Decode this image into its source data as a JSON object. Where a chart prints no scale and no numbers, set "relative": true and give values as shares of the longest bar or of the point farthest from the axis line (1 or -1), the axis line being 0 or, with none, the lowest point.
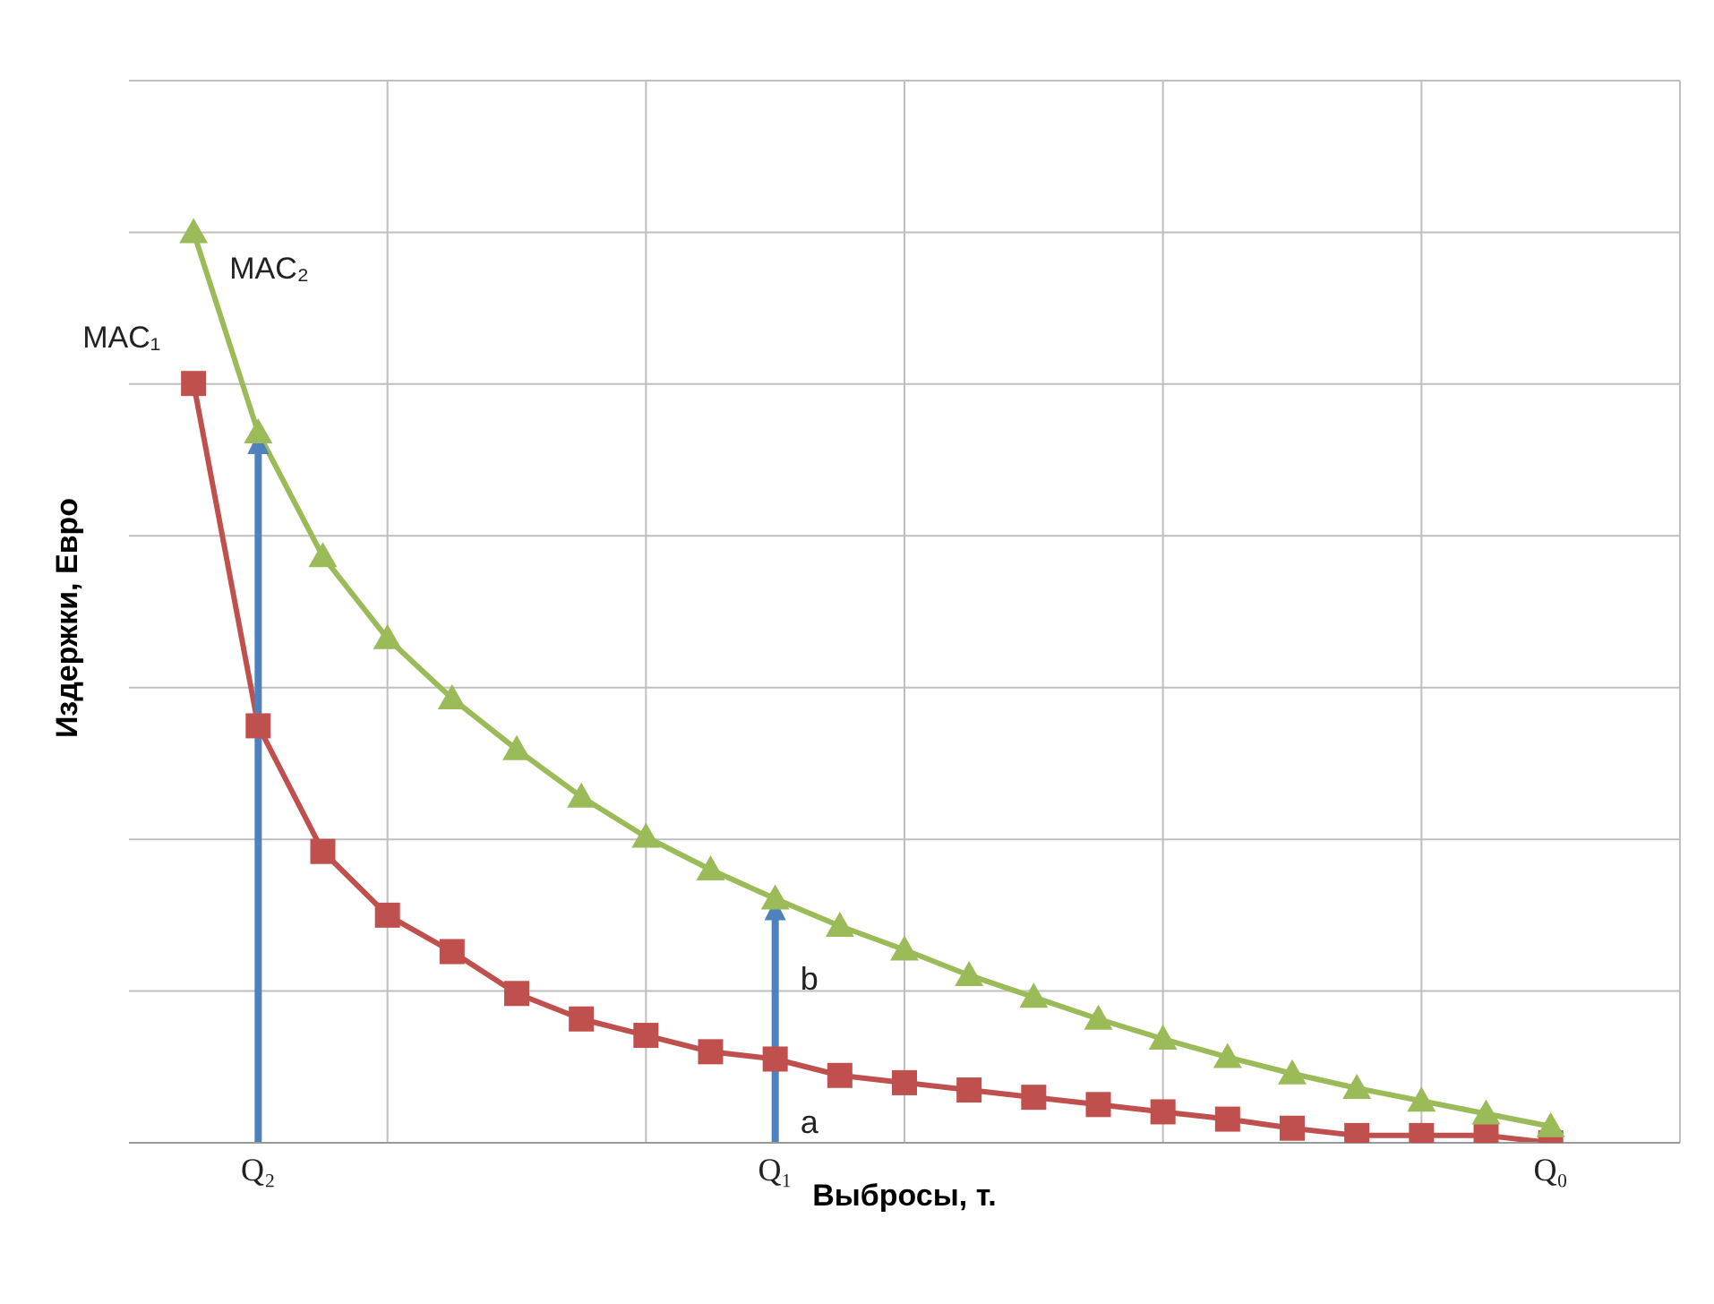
{
  "chart_data": {
    "type": "line",
    "relative": true,
    "xlabel": "Выбросы, т.",
    "ylabel": "Издержки, Евро",
    "categories": [
      null,
      "Q₂",
      null,
      null,
      null,
      null,
      null,
      null,
      null,
      "Q₁",
      null,
      null,
      null,
      null,
      null,
      null,
      null,
      null,
      null,
      null,
      null,
      "Q₀"
    ],
    "series": [
      {
        "name": "MAC₁",
        "color": "#c0504d",
        "marker": "square",
        "values": [
          0.834,
          0.458,
          0.32,
          0.25,
          0.21,
          0.164,
          0.136,
          0.118,
          0.1,
          0.092,
          0.074,
          0.066,
          0.058,
          0.05,
          0.042,
          0.034,
          0.026,
          0.016,
          0.008,
          0.008,
          0.008,
          0
        ]
      },
      {
        "name": "MAC₂",
        "color": "#9bbb59",
        "marker": "triangle",
        "values": [
          1,
          0.78,
          0.644,
          0.554,
          0.488,
          0.432,
          0.38,
          0.336,
          0.3,
          0.268,
          0.238,
          0.212,
          0.184,
          0.16,
          0.136,
          0.114,
          0.094,
          0.076,
          0.06,
          0.046,
          0.032,
          0.018
        ]
      }
    ],
    "annotations": [
      "a",
      "b"
    ],
    "grid": true,
    "legend": false
  }
}
